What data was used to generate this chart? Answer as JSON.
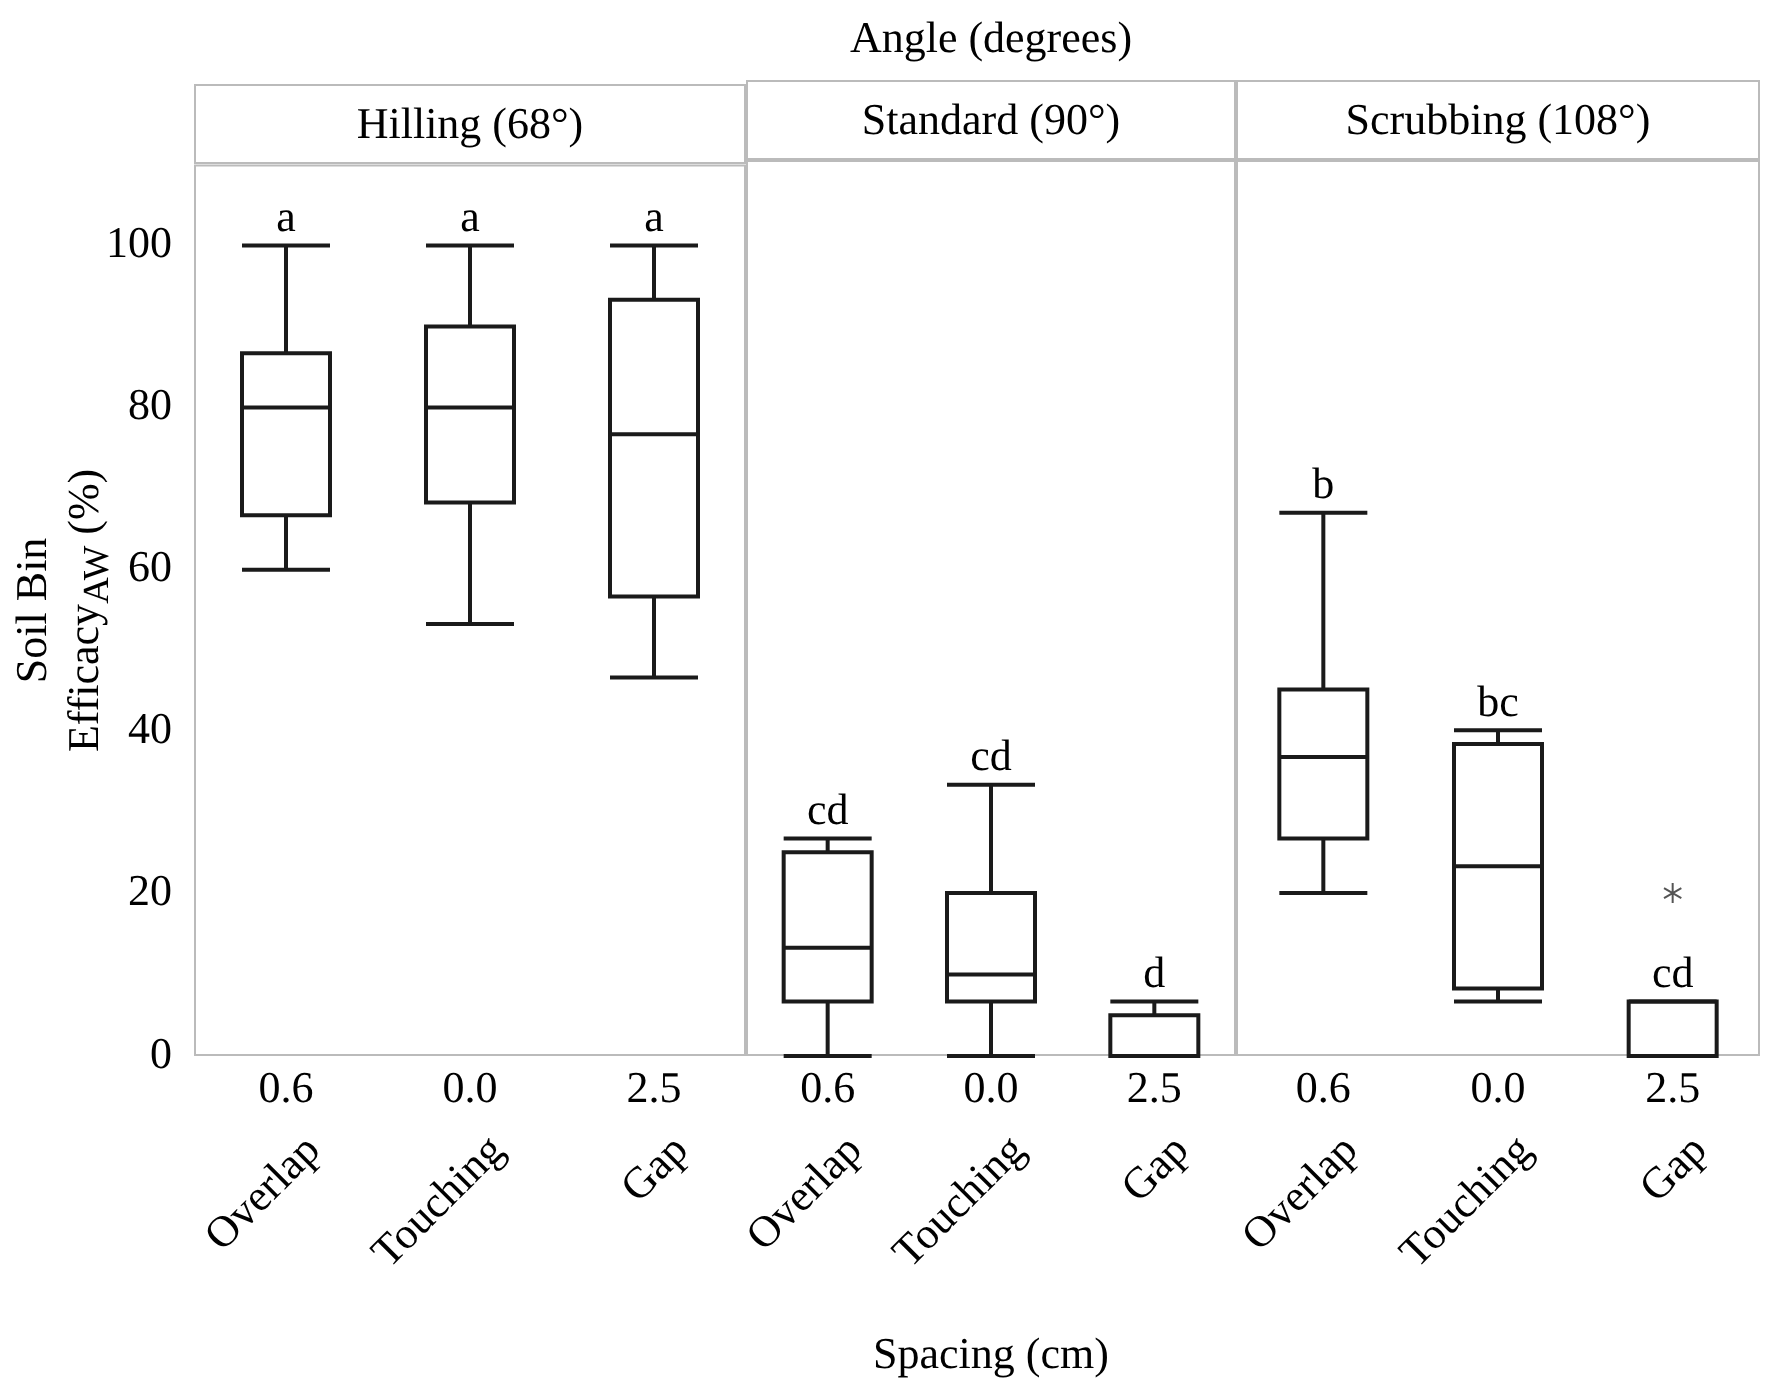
{
  "chart_data": [
    {
      "type": "box",
      "title": "Hilling (68°)",
      "ylabel": "Soil Bin Efficacy$_{AW}$ (%)",
      "categories": [
        "0.6 Overlap",
        "0.0 Touching",
        "2.5 Gap"
      ],
      "ylim": [
        0,
        110
      ],
      "yticks": [
        0,
        20,
        40,
        60,
        80,
        100
      ],
      "grid": false,
      "boxes": [
        {
          "low": 60,
          "q1": 66.7,
          "median": 80,
          "q3": 86.7,
          "high": 100
        },
        {
          "low": 53.3,
          "q1": 68.3,
          "median": 80,
          "q3": 90,
          "high": 100
        },
        {
          "low": 46.7,
          "q1": 56.7,
          "median": 76.7,
          "q3": 93.3,
          "high": 100
        }
      ],
      "annotations": [
        {
          "text": "a",
          "x": "0.6 Overlap",
          "y": 100
        },
        {
          "text": "a",
          "x": "0.0 Touching",
          "y": 100
        },
        {
          "text": "a",
          "x": "2.5 Gap",
          "y": 100
        }
      ]
    },
    {
      "type": "box",
      "title": "Standard (90°)",
      "xlabel": "Spacing (cm)",
      "categories": [
        "0.6 Overlap",
        "0.0 Touching",
        "2.5 Gap"
      ],
      "ylim": [
        0,
        110
      ],
      "tick_labels": "x",
      "grid": false,
      "boxes": [
        {
          "low": 0,
          "q1": 6.7,
          "median": 13.3,
          "q3": 25,
          "high": 26.7
        },
        {
          "low": 0,
          "q1": 6.7,
          "median": 10,
          "q3": 20,
          "high": 33.3
        },
        {
          "low": 0,
          "q1": 0,
          "median": 0,
          "q3": 5,
          "high": 6.7
        }
      ],
      "annotations": [
        "Angle (degrees)",
        {
          "text": "cd",
          "x": "0.6 Overlap",
          "y": 26.7
        },
        {
          "text": "cd",
          "x": "0.0 Touching",
          "y": 33.3
        },
        {
          "text": "d",
          "x": "2.5 Gap",
          "y": 6.7
        }
      ]
    },
    {
      "type": "box",
      "title": "Scrubbing (108°)",
      "categories": [
        "0.6 Overlap",
        "0.0 Touching",
        "2.5 Gap"
      ],
      "ylim": [
        0,
        110
      ],
      "tick_labels": "x",
      "grid": false,
      "boxes": [
        {
          "low": 20,
          "q1": 26.7,
          "median": 36.7,
          "q3": 45,
          "high": 66.7
        },
        {
          "low": 6.7,
          "q1": 8.3,
          "median": 23.3,
          "q3": 38.3,
          "high": 40
        },
        {
          "low": 0,
          "q1": 0,
          "median": 0,
          "q3": 6.7,
          "high": 6.7,
          "outliers": [
            20
          ]
        }
      ],
      "annotations": [
        {
          "text": "b",
          "x": "0.6 Overlap",
          "y": 66.7
        },
        {
          "text": "bc",
          "x": "0.0 Touching",
          "y": 40
        },
        {
          "text": "cd",
          "x": "2.5 Gap",
          "y": 6.7
        }
      ]
    }
  ]
}
